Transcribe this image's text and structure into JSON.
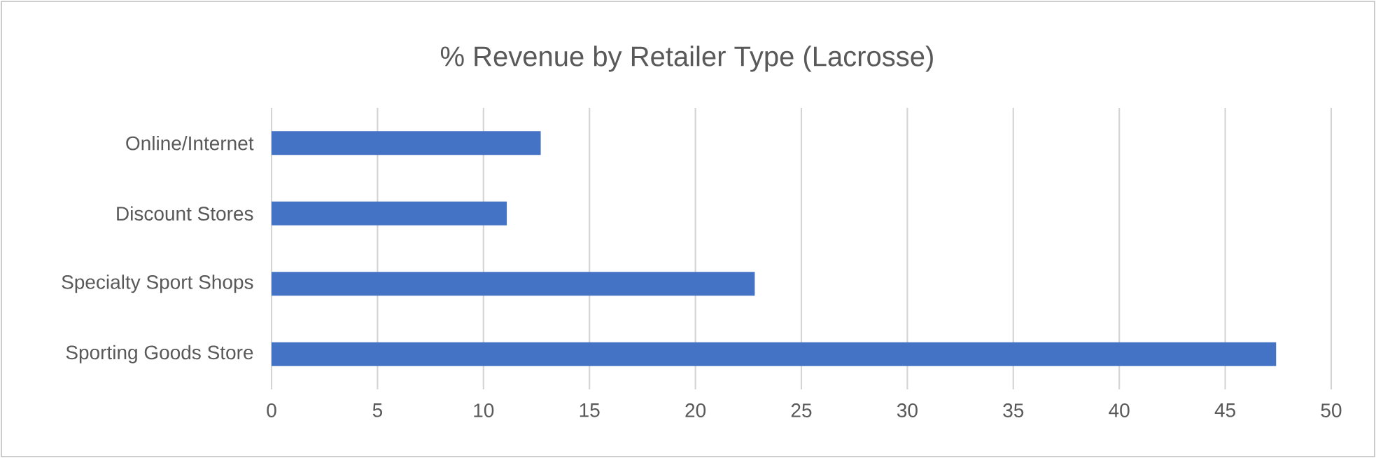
{
  "chart_data": {
    "type": "bar",
    "orientation": "horizontal",
    "title": "% Revenue by Retailer Type (Lacrosse)",
    "categories": [
      "Online/Internet",
      "Discount Stores",
      "Specialty Sport Shops",
      "Sporting Goods Store"
    ],
    "values": [
      12.7,
      11.1,
      22.8,
      47.4
    ],
    "color": "#4472c4",
    "xlim": [
      0,
      50
    ],
    "xticks": [
      0,
      5,
      10,
      15,
      20,
      25,
      30,
      35,
      40,
      45,
      50
    ],
    "grid": "x"
  }
}
